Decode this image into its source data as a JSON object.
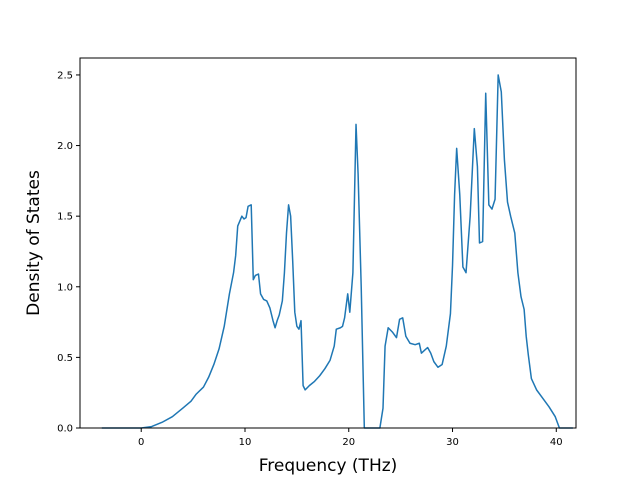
{
  "chart_data": {
    "type": "line",
    "title": "",
    "xlabel": "Frequency (THz)",
    "ylabel": "Density of States",
    "xlim": [
      -5.9,
      41.9
    ],
    "ylim": [
      0,
      2.62
    ],
    "xticks": [
      0,
      10,
      20,
      30,
      40
    ],
    "xtick_labels": [
      "0",
      "10",
      "20",
      "30",
      "40"
    ],
    "yticks": [
      0.0,
      0.5,
      1.0,
      1.5,
      2.0,
      2.5
    ],
    "ytick_labels": [
      "0.0",
      "0.5",
      "1.0",
      "1.5",
      "2.0",
      "2.5"
    ],
    "grid": false,
    "legend": "none",
    "series": [
      {
        "color": "#1f77b4",
        "points": [
          [
            -3.8,
            0.0
          ],
          [
            0.0,
            0.0
          ],
          [
            1.0,
            0.01
          ],
          [
            2.0,
            0.04
          ],
          [
            3.0,
            0.08
          ],
          [
            4.0,
            0.14
          ],
          [
            4.8,
            0.19
          ],
          [
            5.3,
            0.24
          ],
          [
            6.0,
            0.29
          ],
          [
            6.5,
            0.36
          ],
          [
            7.0,
            0.45
          ],
          [
            7.5,
            0.56
          ],
          [
            8.0,
            0.72
          ],
          [
            8.5,
            0.95
          ],
          [
            8.9,
            1.1
          ],
          [
            9.1,
            1.22
          ],
          [
            9.3,
            1.43
          ],
          [
            9.7,
            1.5
          ],
          [
            9.9,
            1.48
          ],
          [
            10.1,
            1.49
          ],
          [
            10.3,
            1.57
          ],
          [
            10.6,
            1.58
          ],
          [
            10.8,
            1.05
          ],
          [
            11.0,
            1.08
          ],
          [
            11.3,
            1.09
          ],
          [
            11.5,
            0.95
          ],
          [
            11.8,
            0.91
          ],
          [
            12.1,
            0.9
          ],
          [
            12.4,
            0.85
          ],
          [
            12.7,
            0.76
          ],
          [
            12.9,
            0.71
          ],
          [
            13.1,
            0.76
          ],
          [
            13.3,
            0.8
          ],
          [
            13.6,
            0.9
          ],
          [
            13.8,
            1.1
          ],
          [
            14.0,
            1.38
          ],
          [
            14.2,
            1.58
          ],
          [
            14.4,
            1.5
          ],
          [
            14.6,
            1.18
          ],
          [
            14.8,
            0.82
          ],
          [
            15.0,
            0.72
          ],
          [
            15.2,
            0.7
          ],
          [
            15.4,
            0.76
          ],
          [
            15.6,
            0.3
          ],
          [
            15.8,
            0.27
          ],
          [
            16.2,
            0.3
          ],
          [
            16.7,
            0.33
          ],
          [
            17.2,
            0.37
          ],
          [
            17.7,
            0.42
          ],
          [
            18.2,
            0.48
          ],
          [
            18.6,
            0.58
          ],
          [
            18.8,
            0.7
          ],
          [
            19.2,
            0.71
          ],
          [
            19.4,
            0.72
          ],
          [
            19.6,
            0.78
          ],
          [
            19.9,
            0.95
          ],
          [
            20.1,
            0.82
          ],
          [
            20.4,
            1.1
          ],
          [
            20.7,
            2.15
          ],
          [
            20.9,
            1.8
          ],
          [
            21.2,
            1.0
          ],
          [
            21.5,
            0.0
          ],
          [
            23.0,
            0.0
          ],
          [
            23.3,
            0.14
          ],
          [
            23.5,
            0.58
          ],
          [
            23.8,
            0.71
          ],
          [
            24.2,
            0.68
          ],
          [
            24.6,
            0.64
          ],
          [
            24.9,
            0.77
          ],
          [
            25.2,
            0.78
          ],
          [
            25.5,
            0.65
          ],
          [
            25.9,
            0.6
          ],
          [
            26.4,
            0.59
          ],
          [
            26.8,
            0.6
          ],
          [
            27.0,
            0.53
          ],
          [
            27.3,
            0.55
          ],
          [
            27.6,
            0.57
          ],
          [
            27.9,
            0.53
          ],
          [
            28.2,
            0.47
          ],
          [
            28.6,
            0.43
          ],
          [
            29.0,
            0.45
          ],
          [
            29.4,
            0.58
          ],
          [
            29.8,
            0.81
          ],
          [
            30.0,
            1.15
          ],
          [
            30.2,
            1.65
          ],
          [
            30.4,
            1.98
          ],
          [
            30.7,
            1.65
          ],
          [
            31.0,
            1.14
          ],
          [
            31.3,
            1.1
          ],
          [
            31.7,
            1.5
          ],
          [
            32.1,
            2.12
          ],
          [
            32.4,
            1.85
          ],
          [
            32.6,
            1.31
          ],
          [
            32.9,
            1.32
          ],
          [
            33.2,
            2.37
          ],
          [
            33.5,
            1.58
          ],
          [
            33.8,
            1.55
          ],
          [
            34.1,
            1.62
          ],
          [
            34.4,
            2.5
          ],
          [
            34.7,
            2.38
          ],
          [
            35.0,
            1.9
          ],
          [
            35.3,
            1.6
          ],
          [
            35.6,
            1.5
          ],
          [
            36.0,
            1.38
          ],
          [
            36.3,
            1.1
          ],
          [
            36.6,
            0.93
          ],
          [
            36.9,
            0.84
          ],
          [
            37.1,
            0.65
          ],
          [
            37.3,
            0.52
          ],
          [
            37.6,
            0.35
          ],
          [
            38.1,
            0.27
          ],
          [
            38.7,
            0.21
          ],
          [
            39.3,
            0.15
          ],
          [
            39.9,
            0.08
          ],
          [
            40.3,
            0.0
          ],
          [
            41.6,
            0.0
          ]
        ]
      }
    ]
  }
}
